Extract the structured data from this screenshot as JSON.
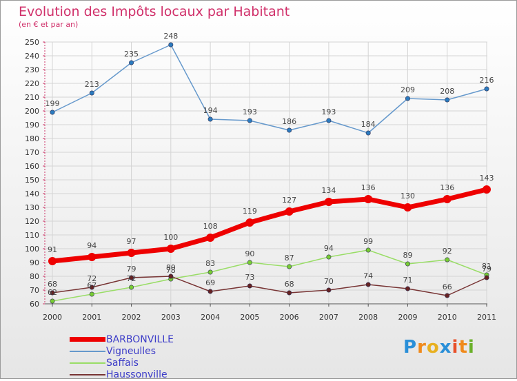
{
  "title": "Evolution des Impôts locaux par Habitant",
  "subtitle": "(en € et par an)",
  "logo": [
    "P",
    "r",
    "o",
    "x",
    "i",
    "t",
    "i"
  ],
  "logo_colors": [
    "#2a8fd8",
    "#f08a1c",
    "#e8b020",
    "#2a8fd8",
    "#e8502a",
    "#f08a1c",
    "#6ab02a"
  ],
  "chart_data": {
    "type": "line",
    "x": [
      "2000",
      "2001",
      "2002",
      "2003",
      "2004",
      "2005",
      "2006",
      "2007",
      "2008",
      "2009",
      "2010",
      "2011"
    ],
    "ylim": [
      60,
      250
    ],
    "yticks": [
      60,
      70,
      80,
      90,
      100,
      110,
      120,
      130,
      140,
      150,
      160,
      170,
      180,
      190,
      200,
      210,
      220,
      230,
      240,
      250
    ],
    "series": [
      {
        "name": "BARBONVILLE",
        "color": "#ee0000",
        "marker": "#ee0000",
        "values": [
          91,
          94,
          97,
          100,
          108,
          119,
          127,
          134,
          136,
          130,
          136,
          143
        ]
      },
      {
        "name": "Vigneulles",
        "color": "#6699cc",
        "marker": "#2b7bbf",
        "values": [
          199,
          213,
          235,
          248,
          194,
          193,
          186,
          193,
          184,
          209,
          208,
          216
        ]
      },
      {
        "name": "Saffais",
        "color": "#99dd66",
        "marker": "#77cc33",
        "values": [
          62,
          67,
          72,
          78,
          83,
          90,
          87,
          94,
          99,
          89,
          92,
          81
        ]
      },
      {
        "name": "Haussonville",
        "color": "#773333",
        "marker": "#662222",
        "values": [
          68,
          72,
          79,
          80,
          69,
          73,
          68,
          70,
          74,
          71,
          66,
          79
        ]
      }
    ]
  }
}
